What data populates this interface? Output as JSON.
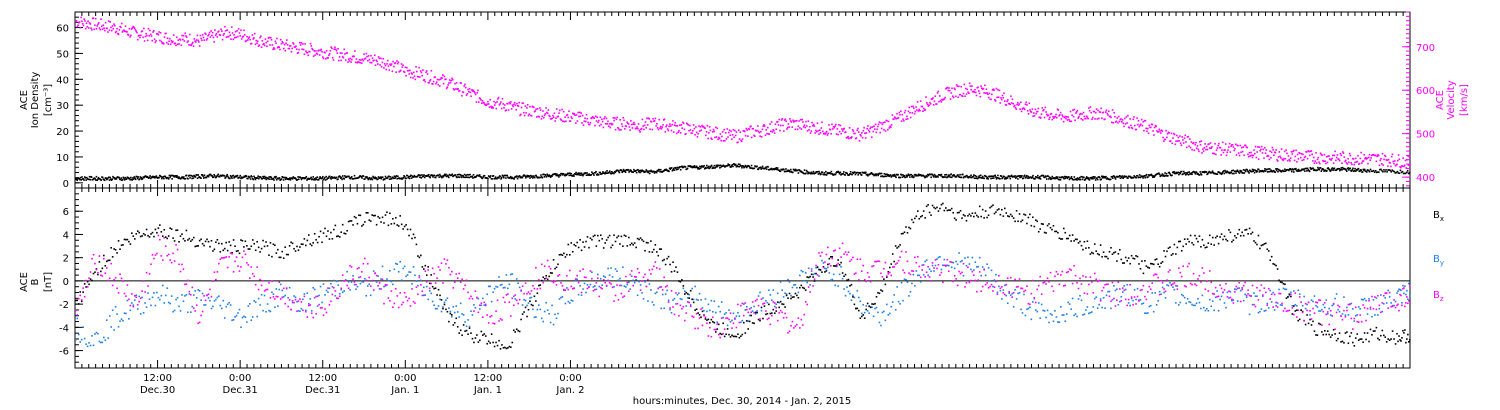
{
  "chart_data": [
    {
      "type": "scatter",
      "panel": "top",
      "ylabel_left": [
        "ACE",
        "Ion Density",
        "[cm⁻³]"
      ],
      "ylabel_right": [
        "ACE",
        "Velocity",
        "[km/s]"
      ],
      "ylim_left": [
        -2,
        66
      ],
      "ylim_right": [
        375,
        780
      ],
      "yticks_left": [
        0,
        10,
        20,
        30,
        40,
        50,
        60
      ],
      "yticks_right": [
        400,
        500,
        600,
        700
      ],
      "colors": {
        "density": "#000000",
        "velocity": "#ff00ff"
      },
      "series": [
        {
          "name": "Ion Density",
          "axis": "left",
          "color": "#000000",
          "x": [
            0,
            4,
            8,
            12,
            16,
            20,
            24,
            28,
            32,
            36,
            40,
            44,
            48,
            52,
            56,
            60,
            64,
            68,
            72,
            76,
            80,
            84,
            88,
            92,
            96,
            100,
            104,
            108,
            112,
            116,
            120,
            124,
            128,
            132,
            136,
            140,
            144,
            148,
            152,
            156,
            160,
            164,
            168,
            172,
            176,
            180,
            184,
            188,
            194
          ],
          "y": [
            2,
            2,
            2,
            2.5,
            2.5,
            3,
            2.5,
            2,
            2,
            2,
            2.5,
            2,
            2.5,
            3,
            3,
            2.5,
            2.5,
            3,
            3.5,
            4,
            5,
            4.5,
            6,
            6.5,
            7,
            6,
            5,
            4,
            4,
            3.5,
            3,
            3,
            3,
            2.5,
            2.5,
            2.5,
            2,
            2,
            2.5,
            3,
            4,
            4,
            4.5,
            5,
            5,
            5.5,
            5.5,
            5,
            4.5
          ]
        },
        {
          "name": "Velocity",
          "axis": "right",
          "color": "#ff00ff",
          "x": [
            0,
            2,
            4,
            6,
            8,
            10,
            12,
            14,
            16,
            18,
            20,
            22,
            24,
            26,
            28,
            30,
            32,
            34,
            36,
            38,
            40,
            42,
            44,
            46,
            48,
            50,
            52,
            54,
            56,
            58,
            60,
            62,
            64,
            66,
            68,
            70,
            72,
            74,
            76,
            78,
            80,
            82,
            84,
            86,
            88,
            90,
            92,
            94,
            96,
            98,
            100,
            102,
            104,
            106,
            108,
            110,
            112,
            114,
            116,
            118,
            120,
            122,
            124,
            126,
            128,
            130,
            132,
            134,
            136,
            138,
            140,
            142,
            144,
            146,
            148,
            150,
            152,
            154,
            156,
            158,
            160,
            162,
            164,
            166,
            168,
            170,
            172,
            174,
            176,
            178,
            180,
            182,
            184,
            186,
            188,
            190,
            192,
            194
          ],
          "y": [
            760,
            755,
            750,
            745,
            735,
            730,
            725,
            720,
            720,
            715,
            725,
            735,
            730,
            720,
            710,
            705,
            700,
            695,
            690,
            685,
            680,
            675,
            670,
            660,
            645,
            640,
            630,
            620,
            605,
            590,
            575,
            570,
            560,
            555,
            550,
            545,
            540,
            535,
            530,
            525,
            525,
            520,
            525,
            520,
            515,
            510,
            505,
            500,
            495,
            505,
            510,
            520,
            525,
            520,
            515,
            510,
            505,
            500,
            510,
            525,
            540,
            560,
            575,
            590,
            600,
            605,
            600,
            590,
            575,
            560,
            550,
            545,
            540,
            545,
            550,
            545,
            535,
            525,
            515,
            500,
            490,
            480,
            470,
            468,
            465,
            462,
            458,
            455,
            452,
            450,
            448,
            447,
            446,
            445,
            444,
            443,
            440,
            435
          ]
        }
      ]
    },
    {
      "type": "scatter",
      "panel": "bottom",
      "ylabel_left": [
        "ACE",
        "B",
        "[nT]"
      ],
      "ylim": [
        -7.5,
        8
      ],
      "yticks": [
        -6,
        -4,
        -2,
        0,
        2,
        4,
        6
      ],
      "zero_line": true,
      "legend_position": "right",
      "colors": {
        "bx": "#000000",
        "by": "#1e7fe6",
        "bz": "#ff00ff"
      },
      "series": [
        {
          "name": "Bx",
          "label_main": "B",
          "label_sub": "x",
          "color": "#000000",
          "x": [
            0,
            3,
            6,
            9,
            12,
            15,
            18,
            21,
            24,
            27,
            30,
            33,
            36,
            39,
            42,
            45,
            48,
            51,
            54,
            57,
            60,
            63,
            66,
            69,
            72,
            75,
            78,
            81,
            84,
            87,
            90,
            93,
            96,
            99,
            102,
            105,
            108,
            111,
            114,
            117,
            120,
            123,
            126,
            129,
            132,
            135,
            138,
            141,
            144,
            147,
            150,
            153,
            156,
            159,
            162,
            165,
            168,
            171,
            174,
            177,
            180,
            183,
            186,
            189,
            192,
            194
          ],
          "y": [
            -2,
            1,
            3,
            4,
            4.5,
            4,
            3.5,
            3,
            3,
            3,
            2.5,
            3.5,
            4,
            4.5,
            5.5,
            5.5,
            5,
            1,
            -3,
            -4.5,
            -5,
            -5.5,
            -2,
            1,
            3,
            3.5,
            3.5,
            3.5,
            3,
            1,
            -2,
            -4,
            -4.5,
            -3,
            -2,
            -1,
            1,
            2,
            -3,
            -1,
            4,
            6,
            6.5,
            5.5,
            6,
            6,
            5.5,
            4.5,
            4,
            3,
            2.5,
            2,
            1,
            2.5,
            3.5,
            3.5,
            4,
            4,
            2,
            -2.5,
            -4,
            -4.5,
            -5,
            -4.5,
            -4.8,
            -4.6
          ]
        },
        {
          "name": "By",
          "label_main": "B",
          "label_sub": "y",
          "color": "#1e7fe6",
          "x": [
            0,
            3,
            6,
            9,
            12,
            15,
            18,
            21,
            24,
            27,
            30,
            33,
            36,
            39,
            42,
            45,
            48,
            51,
            54,
            57,
            60,
            63,
            66,
            69,
            72,
            75,
            78,
            81,
            84,
            87,
            90,
            93,
            96,
            99,
            102,
            105,
            108,
            111,
            114,
            117,
            120,
            123,
            126,
            129,
            132,
            135,
            138,
            141,
            144,
            147,
            150,
            153,
            156,
            159,
            162,
            165,
            168,
            171,
            174,
            177,
            180,
            183,
            186,
            189,
            192,
            194
          ],
          "y": [
            -4,
            -5,
            -3,
            -2,
            -1,
            -2,
            -1.5,
            -2,
            -3,
            -2,
            -1,
            -2,
            -1,
            0,
            -0.5,
            0.5,
            1,
            -1,
            -2,
            -3,
            -1,
            0,
            -2,
            -3,
            -1,
            0,
            0.5,
            0,
            -1,
            -2,
            -1,
            -2.5,
            -3,
            -2,
            -1,
            0,
            1,
            0.5,
            -2,
            -3,
            -1,
            1,
            2,
            1.5,
            1,
            -1,
            -2,
            -3,
            -2.5,
            -2,
            -1.5,
            -1,
            -2,
            -1,
            -1.5,
            -2,
            -1,
            -2,
            -1.5,
            -1.5,
            -2,
            -2,
            -2.5,
            -2,
            -1.5,
            -1
          ]
        },
        {
          "name": "Bz",
          "label_main": "B",
          "label_sub": "z",
          "color": "#ff00ff",
          "x": [
            0,
            3,
            6,
            9,
            12,
            15,
            18,
            21,
            24,
            27,
            30,
            33,
            36,
            39,
            42,
            45,
            48,
            51,
            54,
            57,
            60,
            63,
            66,
            69,
            72,
            75,
            78,
            81,
            84,
            87,
            90,
            93,
            96,
            99,
            102,
            105,
            108,
            111,
            114,
            117,
            120,
            123,
            126,
            129,
            132,
            135,
            138,
            141,
            144,
            147,
            150,
            153,
            156,
            159,
            162,
            165,
            168,
            171,
            174,
            177,
            180,
            183,
            186,
            189,
            192,
            194
          ],
          "y": [
            -3,
            2,
            0,
            -2,
            3,
            2,
            -3,
            1,
            2,
            0,
            -1,
            -2,
            -2,
            0,
            1,
            -1,
            -2,
            0,
            1,
            -1,
            -3,
            -2,
            0,
            1,
            0,
            0,
            -1,
            0,
            1,
            -2,
            -3,
            -4,
            -3,
            -2,
            -3,
            -4,
            2,
            2.5,
            1,
            1,
            2,
            1,
            1,
            0.5,
            0,
            0,
            -1,
            -0.5,
            0.5,
            0,
            -1,
            -1,
            -0.5,
            0,
            0.5,
            0,
            -1,
            -1,
            -1.5,
            -2,
            -2.5,
            -3,
            -3,
            -2,
            -1.5,
            -1
          ]
        }
      ]
    }
  ],
  "x_axis": {
    "range": [
      0,
      194
    ],
    "major_ticks": [
      {
        "x": 12,
        "time": "12:00",
        "date": "Dec.30"
      },
      {
        "x": 24,
        "time": "0:00",
        "date": "Dec.31"
      },
      {
        "x": 36,
        "time": "12:00",
        "date": "Dec.31"
      },
      {
        "x": 48,
        "time": "0:00",
        "date": "Jan. 1"
      },
      {
        "x": 60,
        "time": "12:00",
        "date": "Jan. 1"
      },
      {
        "x": 72,
        "time": "0:00",
        "date": "Jan. 2"
      }
    ],
    "xlabel": "hours:minutes, Dec. 30, 2014 - Jan.  2, 2015"
  }
}
